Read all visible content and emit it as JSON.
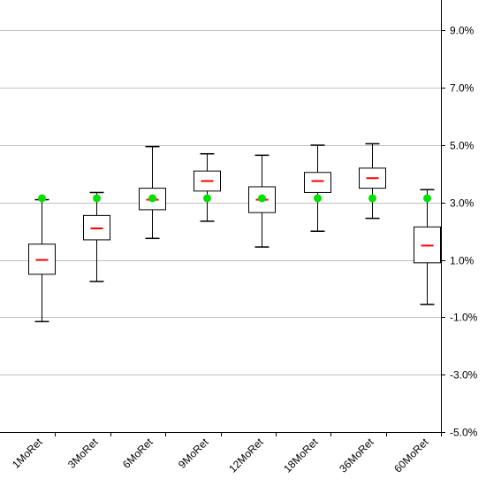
{
  "chart_data": {
    "type": "box",
    "title": "",
    "xlabel": "",
    "ylabel": "",
    "ylim": [
      -5.0,
      10.0
    ],
    "y_ticks": [
      -5.0,
      -3.0,
      -1.0,
      1.0,
      3.0,
      5.0,
      7.0,
      9.0
    ],
    "y_tick_labels": [
      "-5.0%",
      "-3.0%",
      "-1.0%",
      "1.0%",
      "3.0%",
      "5.0%",
      "7.0%",
      "9.0%"
    ],
    "y_axis_side": "right",
    "grid": true,
    "legend": "none",
    "categories": [
      "1MoRet",
      "3MoRet",
      "6MoRet",
      "9MoRet",
      "12MoRet",
      "18MoRet",
      "36MoRet",
      "60MoRet"
    ],
    "whisker_low": [
      -1.15,
      0.25,
      1.75,
      2.35,
      1.45,
      2.0,
      2.45,
      -0.55
    ],
    "box_low": [
      0.5,
      1.7,
      2.75,
      3.4,
      2.65,
      3.35,
      3.5,
      0.9
    ],
    "median": [
      1.0,
      2.1,
      3.1,
      3.75,
      3.1,
      3.75,
      3.85,
      1.5
    ],
    "box_high": [
      1.55,
      2.55,
      3.5,
      4.1,
      3.55,
      4.05,
      4.2,
      2.15
    ],
    "whisker_high": [
      3.1,
      3.35,
      4.95,
      4.7,
      4.65,
      5.0,
      5.05,
      3.45
    ],
    "marker": [
      3.15,
      3.15,
      3.15,
      3.15,
      3.15,
      3.15,
      3.15,
      3.15
    ],
    "colors": {
      "median": "#ff0000",
      "marker": "#00e000",
      "box": "#000000",
      "grid": "#c0c0c0",
      "axis": "#000000"
    }
  }
}
